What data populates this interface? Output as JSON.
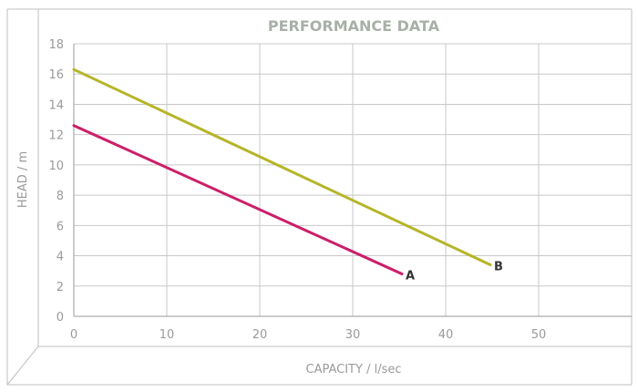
{
  "chart_data": {
    "type": "line",
    "title": "PERFORMANCE DATA",
    "xlabel": "CAPACITY / l/sec",
    "ylabel": "HEAD / m",
    "xlim": [
      0,
      60
    ],
    "ylim": [
      0,
      18
    ],
    "xticks": [
      0,
      10,
      20,
      30,
      40,
      50
    ],
    "yticks": [
      0,
      2,
      4,
      6,
      8,
      10,
      12,
      14,
      16,
      18
    ],
    "grid": true,
    "series": [
      {
        "name": "A",
        "color": "#cc1f6a",
        "points": [
          [
            0,
            12.6
          ],
          [
            35.3,
            2.8
          ]
        ]
      },
      {
        "name": "B",
        "color": "#b5b52a",
        "points": [
          [
            0,
            16.3
          ],
          [
            44.8,
            3.4
          ]
        ]
      }
    ]
  }
}
